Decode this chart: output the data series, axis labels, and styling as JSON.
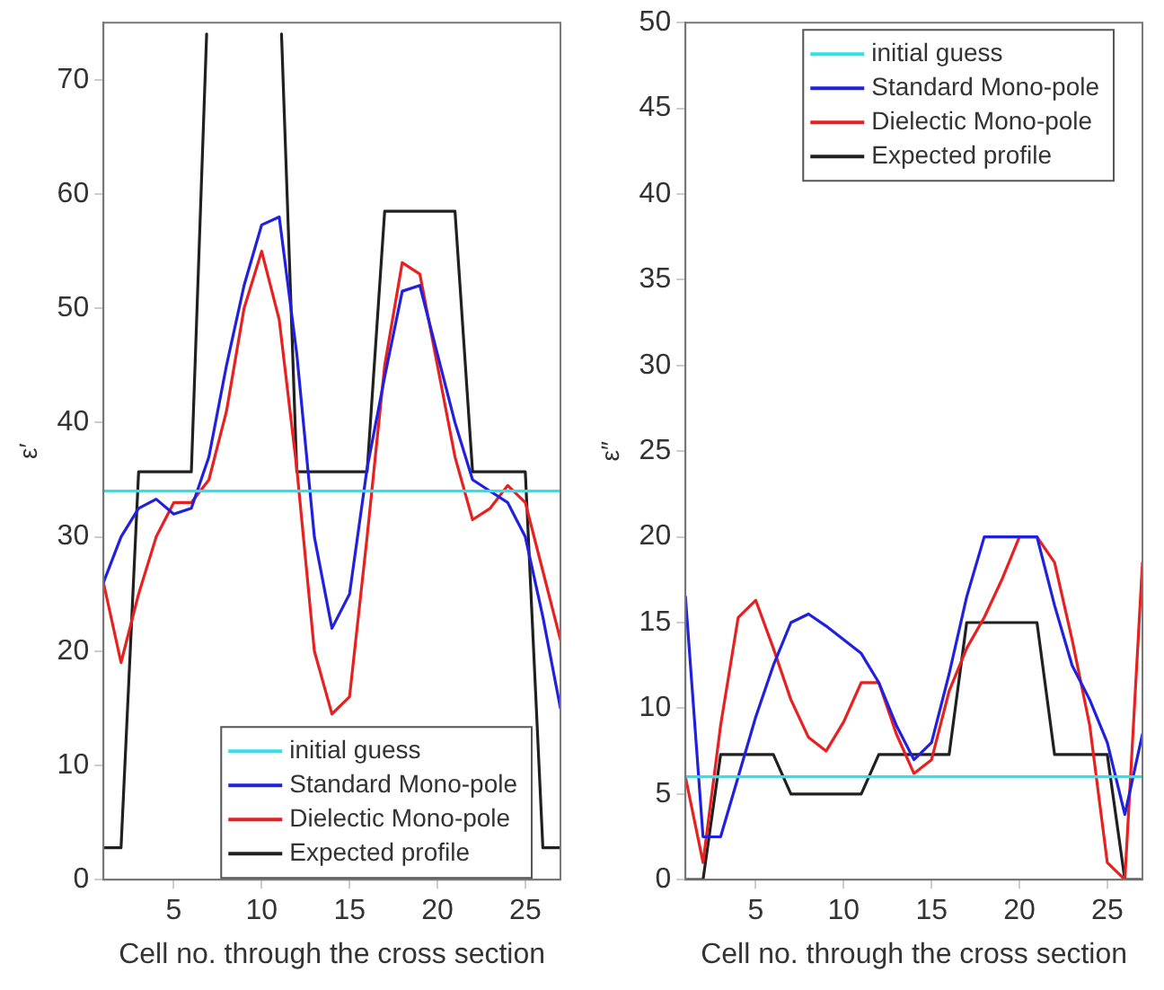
{
  "chart_data": [
    {
      "type": "line",
      "xlabel": "Cell no. through the cross section",
      "ylabel": "ε′",
      "x": [
        1,
        2,
        3,
        4,
        5,
        6,
        7,
        8,
        9,
        10,
        11,
        12,
        13,
        14,
        15,
        16,
        17,
        18,
        19,
        20,
        21,
        22,
        23,
        24,
        25,
        26,
        27
      ],
      "xlim": [
        1,
        27
      ],
      "xticks": [
        5,
        10,
        15,
        20,
        25
      ],
      "ylim": [
        0,
        75
      ],
      "yticks": [
        0,
        10,
        20,
        30,
        40,
        50,
        60,
        70
      ],
      "grid": false,
      "legend": "bottom right",
      "line_style": "solid",
      "marker": "none",
      "series": [
        {
          "name": "initial guess",
          "color": "#33e0e8",
          "values": [
            34,
            34,
            34,
            34,
            34,
            34,
            34,
            34,
            34,
            34,
            34,
            34,
            34,
            34,
            34,
            34,
            34,
            34,
            34,
            34,
            34,
            34,
            34,
            34,
            34,
            34,
            34
          ]
        },
        {
          "name": "Standard Mono-pole",
          "color": "#2020e0",
          "values": [
            26,
            30,
            32.5,
            33.3,
            32,
            32.5,
            37,
            45,
            52,
            57.3,
            58,
            46,
            30,
            22,
            25,
            36,
            44,
            51.5,
            52,
            46,
            40,
            35,
            34,
            33,
            30,
            23,
            15
          ]
        },
        {
          "name": "Dielectic Mono-pole",
          "color": "#e82020",
          "values": [
            26,
            19,
            25,
            30,
            33,
            33,
            35,
            41,
            50,
            55,
            49,
            36,
            20,
            14.5,
            16,
            30,
            45,
            54,
            53,
            45,
            37,
            31.5,
            32.5,
            34.5,
            33,
            27,
            21
          ]
        },
        {
          "name": "Expected profile",
          "color": "#202020",
          "x": [
            1,
            2,
            3,
            6,
            6.87,
            9,
            11.13,
            12,
            16,
            17,
            21,
            22,
            25,
            26,
            27
          ],
          "values": [
            2.8,
            2.8,
            35.7,
            35.7,
            74,
            null,
            74,
            35.7,
            35.7,
            58.5,
            58.5,
            35.7,
            35.7,
            2.8,
            2.8
          ]
        }
      ]
    },
    {
      "type": "line",
      "xlabel": "Cell no. through the cross section",
      "ylabel": "ε″",
      "x": [
        1,
        2,
        3,
        4,
        5,
        6,
        7,
        8,
        9,
        10,
        11,
        12,
        13,
        14,
        15,
        16,
        17,
        18,
        19,
        20,
        21,
        22,
        23,
        24,
        25,
        26,
        27
      ],
      "xlim": [
        1,
        27
      ],
      "xticks": [
        5,
        10,
        15,
        20,
        25
      ],
      "ylim": [
        0,
        50
      ],
      "yticks": [
        0,
        5,
        10,
        15,
        20,
        25,
        30,
        35,
        40,
        45,
        50
      ],
      "grid": false,
      "legend": "top right",
      "line_style": "solid",
      "marker": "none",
      "series": [
        {
          "name": "initial guess",
          "color": "#33e0e8",
          "values": [
            6,
            6,
            6,
            6,
            6,
            6,
            6,
            6,
            6,
            6,
            6,
            6,
            6,
            6,
            6,
            6,
            6,
            6,
            6,
            6,
            6,
            6,
            6,
            6,
            6,
            6,
            6
          ]
        },
        {
          "name": "Standard Mono-pole",
          "color": "#2020e0",
          "values": [
            16.5,
            2.5,
            2.5,
            6,
            9.5,
            12.5,
            15,
            15.5,
            14.8,
            14,
            13.2,
            11.5,
            9,
            7,
            8,
            12,
            16.5,
            20,
            20,
            20,
            20,
            16,
            12.5,
            10.5,
            8,
            3.8,
            8.5
          ]
        },
        {
          "name": "Dielectic Mono-pole",
          "color": "#e82020",
          "values": [
            6,
            1,
            9,
            15.3,
            16.3,
            13.5,
            10.5,
            8.3,
            7.5,
            9.2,
            11.5,
            11.5,
            8.5,
            6.2,
            7,
            11,
            13.5,
            15.3,
            17.5,
            20,
            20,
            18.5,
            14,
            9,
            1,
            0,
            18.5
          ]
        },
        {
          "name": "Expected profile",
          "color": "#202020",
          "values": [
            0,
            0,
            7.3,
            7.3,
            7.3,
            7.3,
            5,
            5,
            5,
            5,
            5,
            7.3,
            7.3,
            7.3,
            7.3,
            7.3,
            15,
            15,
            15,
            15,
            15,
            7.3,
            7.3,
            7.3,
            7.3,
            0,
            0
          ]
        }
      ]
    }
  ]
}
